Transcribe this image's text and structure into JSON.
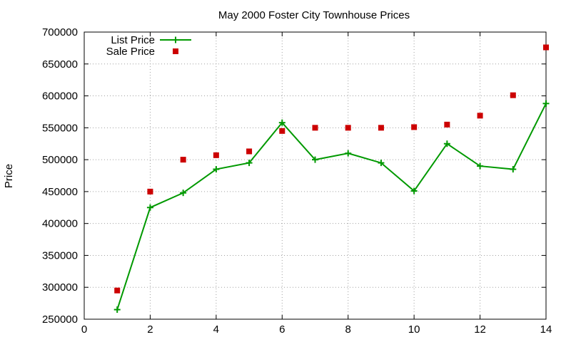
{
  "chart_data": {
    "type": "line",
    "title": "May 2000 Foster City Townhouse Prices",
    "xlabel": "",
    "ylabel": "Price",
    "xlim": [
      0,
      14
    ],
    "ylim": [
      250000,
      700000
    ],
    "x_ticks": [
      0,
      2,
      4,
      6,
      8,
      10,
      12,
      14
    ],
    "y_ticks": [
      250000,
      300000,
      350000,
      400000,
      450000,
      500000,
      550000,
      600000,
      650000,
      700000
    ],
    "grid": true,
    "legend_position": "top-left",
    "series": [
      {
        "name": "List Price",
        "style": "linespoints",
        "marker": "plus",
        "color": "#009900",
        "x": [
          1,
          2,
          3,
          4,
          5,
          6,
          7,
          8,
          9,
          10,
          11,
          12,
          13,
          14
        ],
        "values": [
          265000,
          425000,
          448000,
          485000,
          495000,
          558000,
          500000,
          510000,
          495000,
          451000,
          525000,
          490000,
          485000,
          588000
        ]
      },
      {
        "name": "Sale Price",
        "style": "points",
        "marker": "square",
        "color": "#cc0000",
        "x": [
          1,
          2,
          3,
          4,
          5,
          6,
          7,
          8,
          9,
          10,
          11,
          12,
          13,
          14
        ],
        "values": [
          295000,
          450000,
          500000,
          507000,
          513000,
          545000,
          550000,
          550000,
          550000,
          551000,
          555000,
          569000,
          601000,
          676000
        ]
      }
    ]
  }
}
